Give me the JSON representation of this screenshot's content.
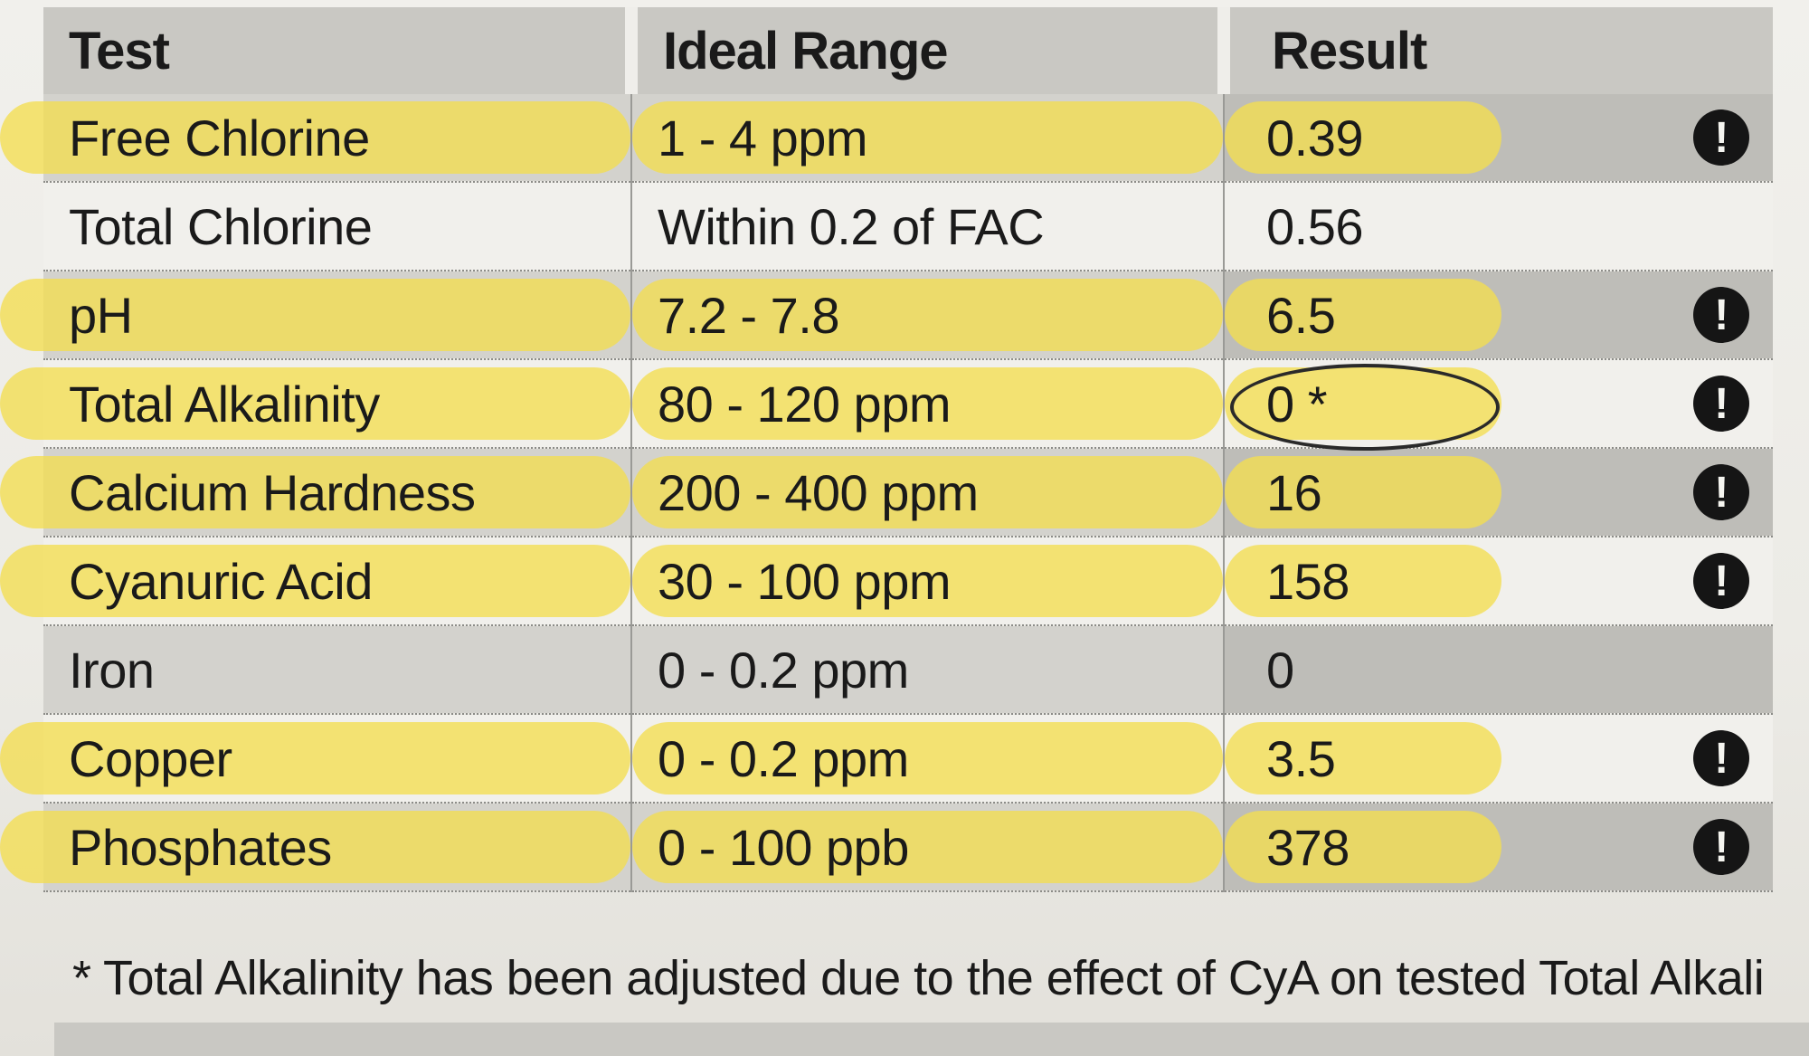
{
  "headers": [
    "Test",
    "Ideal Range",
    "Result"
  ],
  "rows": [
    {
      "test": "Free Chlorine",
      "range": "1 - 4 ppm",
      "result": "0.39",
      "alert": true,
      "highlight": true
    },
    {
      "test": "Total Chlorine",
      "range": "Within 0.2 of FAC",
      "result": "0.56",
      "alert": false,
      "highlight": false
    },
    {
      "test": "pH",
      "range": "7.2 - 7.8",
      "result": "6.5",
      "alert": true,
      "highlight": true
    },
    {
      "test": "Total Alkalinity",
      "range": "80 - 120 ppm",
      "result": "0 *",
      "alert": true,
      "highlight": true,
      "circled": true
    },
    {
      "test": "Calcium Hardness",
      "range": "200 - 400 ppm",
      "result": "16",
      "alert": true,
      "highlight": true
    },
    {
      "test": "Cyanuric Acid",
      "range": "30 - 100 ppm",
      "result": "158",
      "alert": true,
      "highlight": true
    },
    {
      "test": "Iron",
      "range": "0 - 0.2 ppm",
      "result": "0",
      "alert": false,
      "highlight": false
    },
    {
      "test": "Copper",
      "range": "0 - 0.2 ppm",
      "result": "3.5",
      "alert": true,
      "highlight": true
    },
    {
      "test": "Phosphates",
      "range": "0 - 100 ppb",
      "result": "378",
      "alert": true,
      "highlight": true
    }
  ],
  "alert_icon": "!",
  "footnote": "* Total Alkalinity has been adjusted due to the effect of CyA on tested Total Alkali",
  "colors": {
    "highlighter": "#f4de50",
    "header": "#c9c8c3",
    "alert": "#151515"
  }
}
